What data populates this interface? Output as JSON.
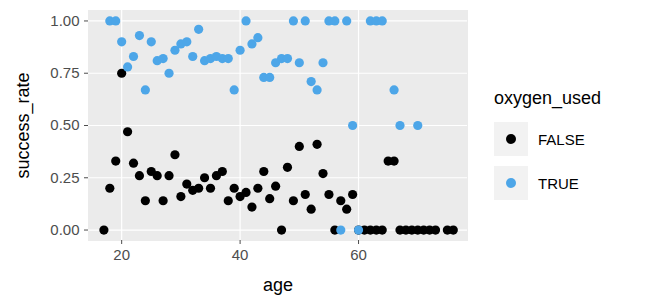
{
  "chart_data": {
    "type": "scatter",
    "x_label": "age",
    "y_label": "success_rate",
    "legend_title": "oxygen_used",
    "legend": "right",
    "grid": true,
    "xlim": [
      14.4,
      78.4
    ],
    "ylim": [
      -0.05,
      1.05
    ],
    "xticks": [
      20,
      40,
      60
    ],
    "yticks": [
      {
        "value": 0,
        "label": "0.00"
      },
      {
        "value": 0.25,
        "label": "0.25"
      },
      {
        "value": 0.5,
        "label": "0.50"
      },
      {
        "value": 0.75,
        "label": "0.75"
      },
      {
        "value": 1,
        "label": "1.00"
      }
    ],
    "series": [
      {
        "name": "FALSE",
        "color": "#000000",
        "x": [
          17,
          18,
          19,
          20,
          21,
          22,
          23,
          24,
          25,
          26,
          27,
          28,
          29,
          30,
          31,
          32,
          33,
          34,
          35,
          36,
          37,
          38,
          39,
          40,
          41,
          42,
          43,
          44,
          45,
          46,
          47,
          48,
          49,
          50,
          51,
          52,
          53,
          54,
          55,
          56,
          57,
          58,
          59,
          60,
          61,
          62,
          63,
          64,
          65,
          66,
          67,
          68,
          69,
          70,
          71,
          72,
          73,
          75,
          76
        ],
        "values": [
          0,
          0.2,
          0.33,
          0.75,
          0.47,
          0.32,
          0.26,
          0.14,
          0.28,
          0.26,
          0.14,
          0.26,
          0.36,
          0.16,
          0.22,
          0.19,
          0.2,
          0.25,
          0.2,
          0.26,
          0.28,
          0.14,
          0.2,
          0.16,
          0.18,
          0.11,
          0.2,
          0.28,
          0.15,
          0.21,
          0,
          0.3,
          0.14,
          0.4,
          0.17,
          0.1,
          0.41,
          0.27,
          0.17,
          0,
          0.14,
          0.1,
          0.17,
          0,
          0,
          0,
          0,
          0,
          0.33,
          0.33,
          0,
          0,
          0,
          0,
          0,
          0,
          0,
          0,
          0
        ]
      },
      {
        "name": "TRUE",
        "color": "#4da6e8",
        "x": [
          18,
          19,
          20,
          21,
          22,
          23,
          24,
          25,
          26,
          27,
          28,
          29,
          30,
          31,
          32,
          33,
          34,
          35,
          36,
          37,
          38,
          39,
          40,
          41,
          42,
          43,
          44,
          45,
          46,
          47,
          48,
          49,
          50,
          51,
          52,
          53,
          54,
          55,
          56,
          57,
          58,
          59,
          60,
          62,
          63,
          64,
          66,
          67,
          70
        ],
        "values": [
          1,
          1,
          0.9,
          0.78,
          0.83,
          0.93,
          0.67,
          0.9,
          0.81,
          0.82,
          0.75,
          0.86,
          0.89,
          0.9,
          0.83,
          0.96,
          0.81,
          0.82,
          0.83,
          0.82,
          0.82,
          0.67,
          0.86,
          1,
          0.89,
          0.92,
          0.73,
          0.73,
          0.8,
          0.82,
          0.82,
          1,
          0.8,
          1,
          0.71,
          0.67,
          0.8,
          1,
          1,
          0,
          1,
          0.5,
          0,
          1,
          1,
          1,
          0.67,
          0.5,
          0.5
        ]
      }
    ]
  }
}
